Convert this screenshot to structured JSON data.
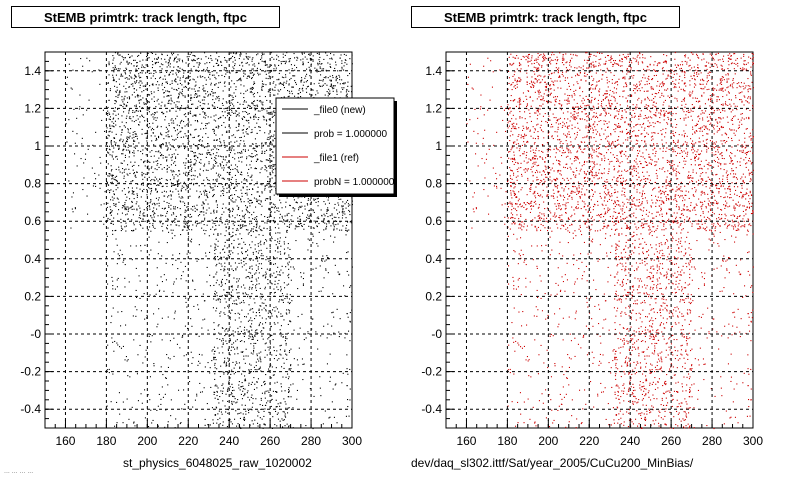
{
  "page": {
    "footer_left": "st_physics_6048025_raw_1020002",
    "footer_right": "dev/daq_sl302.ittf/Sat/year_2005/CuCu200_MinBias/",
    "corner_text": "... ... ... ..."
  },
  "chart_data": [
    {
      "type": "scatter",
      "title": "StEMB primtrk: track length, ftpc",
      "xlabel": "",
      "ylabel": "",
      "xlim": [
        150,
        300
      ],
      "ylim": [
        -0.5,
        1.5
      ],
      "x_ticks": [
        "160",
        "180",
        "200",
        "220",
        "240",
        "260",
        "280",
        "300"
      ],
      "y_ticks": [
        "1.4",
        "1.2",
        "1",
        "0.8",
        "0.6",
        "0.4",
        "0.2",
        "-0",
        "-0.2",
        "-0.4"
      ],
      "grid": true,
      "marker_color": "#000000",
      "legend": {
        "placement": "top-right",
        "entries": [
          {
            "label": "_file0 (new)",
            "color": "#000000"
          },
          {
            "label": "prob = 1.000000",
            "color": "#000000"
          },
          {
            "label": "_file1 (ref)",
            "color": "#cc0000"
          },
          {
            "label": "probN = 1.000000",
            "color": "#cc0000"
          }
        ]
      },
      "density_regions": [
        {
          "x": [
            180,
            300
          ],
          "y": [
            0.55,
            1.5
          ],
          "weight": 0.62
        },
        {
          "x": [
            160,
            300
          ],
          "y": [
            0.55,
            1.5
          ],
          "weight": 0.1
        },
        {
          "x": [
            180,
            300
          ],
          "y": [
            -0.5,
            0.55
          ],
          "weight": 0.12
        },
        {
          "x": [
            232,
            270
          ],
          "y": [
            -0.5,
            0.55
          ],
          "weight": 0.16
        }
      ]
    },
    {
      "type": "scatter",
      "title": "StEMB primtrk: track length, ftpc",
      "xlabel": "",
      "ylabel": "",
      "xlim": [
        150,
        300
      ],
      "ylim": [
        -0.5,
        1.5
      ],
      "x_ticks": [
        "160",
        "180",
        "200",
        "220",
        "240",
        "260",
        "280",
        "300"
      ],
      "y_ticks": [
        "1.4",
        "1.2",
        "1",
        "0.8",
        "0.6",
        "0.4",
        "0.2",
        "-0",
        "-0.2",
        "-0.4"
      ],
      "grid": true,
      "marker_color": "#cc0000",
      "density_regions": [
        {
          "x": [
            180,
            300
          ],
          "y": [
            0.55,
            1.5
          ],
          "weight": 0.62
        },
        {
          "x": [
            160,
            300
          ],
          "y": [
            0.55,
            1.5
          ],
          "weight": 0.1
        },
        {
          "x": [
            180,
            300
          ],
          "y": [
            -0.5,
            0.55
          ],
          "weight": 0.12
        },
        {
          "x": [
            232,
            270
          ],
          "y": [
            -0.5,
            0.55
          ],
          "weight": 0.16
        }
      ]
    }
  ]
}
